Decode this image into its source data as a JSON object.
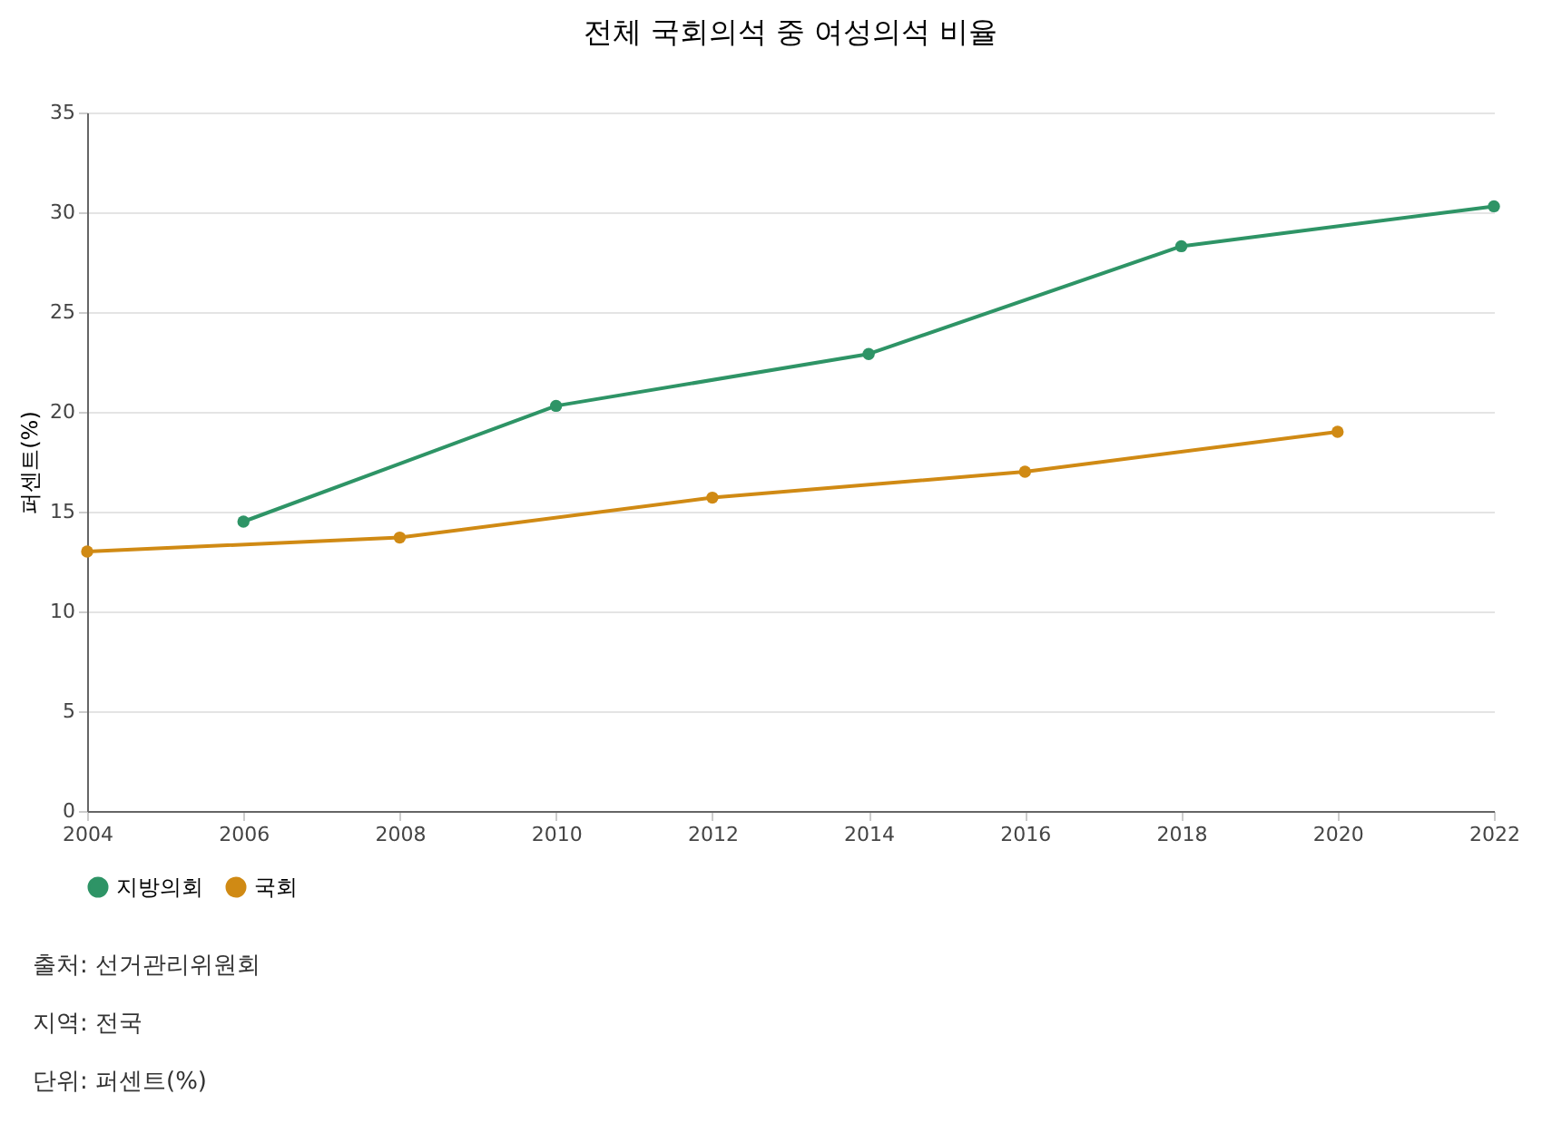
{
  "chart_data": {
    "type": "line",
    "title": "전체 국회의석 중 여성의석 비율",
    "ylabel": "퍼센트(%)",
    "xlim": [
      2004,
      2022
    ],
    "xticks": [
      2004,
      2006,
      2008,
      2010,
      2012,
      2014,
      2016,
      2018,
      2020,
      2022
    ],
    "ylim": [
      0,
      35
    ],
    "yticks": [
      0,
      5,
      10,
      15,
      20,
      25,
      30,
      35
    ],
    "series": [
      {
        "name": "지방의회",
        "color": "#2e9466",
        "x": [
          2006,
          2010,
          2014,
          2018,
          2022
        ],
        "values": [
          14.5,
          20.3,
          22.9,
          28.3,
          30.3
        ]
      },
      {
        "name": "국회",
        "color": "#d08a14",
        "x": [
          2004,
          2008,
          2012,
          2016,
          2020
        ],
        "values": [
          13.0,
          13.7,
          15.7,
          17.0,
          19.0
        ]
      }
    ],
    "grid": "y",
    "legend": "bottom",
    "marker": "circle",
    "line_style": "solid",
    "annotations": [
      "출처: 선거관리위원회",
      "지역: 전국",
      "단위: 퍼센트(%)"
    ]
  }
}
